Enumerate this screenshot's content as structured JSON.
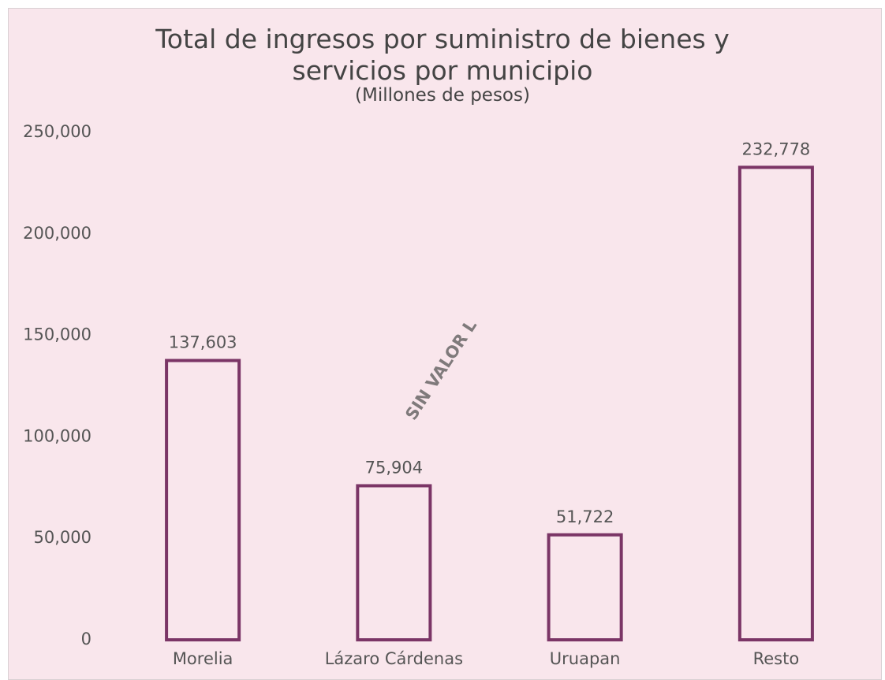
{
  "chart_data": {
    "type": "bar",
    "title": "Total de ingresos por suministro de bienes y servicios por municipio",
    "subtitle": "(Millones de pesos)",
    "categories": [
      "Morelia",
      "Lázaro Cárdenas",
      "Uruapan",
      "Resto"
    ],
    "values": [
      137603,
      75904,
      51722,
      232778
    ],
    "value_labels": [
      "137,603",
      "75,904",
      "51,722",
      "232,778"
    ],
    "color": "#7b3566",
    "ylim": [
      0,
      250000
    ],
    "yticks": [
      0,
      {
        "value": 50000,
        "label": "50,000"
      },
      {
        "value": 100000,
        "label": "100,000"
      },
      {
        "value": 150000,
        "label": "150,000"
      },
      {
        "value": 200000,
        "label": "200,000"
      },
      {
        "value": 250000,
        "label": "250,000"
      }
    ],
    "grid": false,
    "watermark": "SIN VALOR L"
  }
}
